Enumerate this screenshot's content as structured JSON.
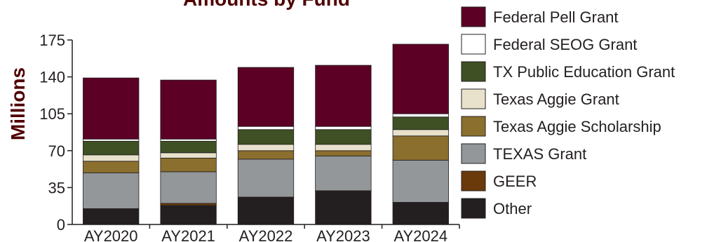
{
  "chart_data": {
    "type": "bar",
    "stacked": true,
    "title": "Amounts by Fund",
    "xlabel": "",
    "ylabel": "Millions",
    "ylim": [
      0,
      175
    ],
    "yticks": [
      "0",
      "35",
      "70",
      "105",
      "140",
      "175"
    ],
    "categories": [
      "AY2020",
      "AY2021",
      "AY2022",
      "AY2023",
      "AY2024"
    ],
    "legend_position": "right",
    "series": [
      {
        "name": "Other",
        "color": "#231f20",
        "values": [
          15,
          18,
          26,
          32,
          21
        ]
      },
      {
        "name": "GEER",
        "color": "#6b3a0a",
        "values": [
          0,
          2,
          0,
          0,
          0
        ]
      },
      {
        "name": "TEXAS Grant",
        "color": "#939799",
        "values": [
          34,
          30,
          36,
          33,
          40
        ]
      },
      {
        "name": "Texas Aggie Scholarship",
        "color": "#8b6f2e",
        "values": [
          11,
          13,
          8,
          5,
          23
        ]
      },
      {
        "name": "Texas Aggie Grant",
        "color": "#e8e2cd",
        "values": [
          6,
          5,
          6,
          6,
          6
        ]
      },
      {
        "name": "TX Public Education Grant",
        "color": "#3e5024",
        "values": [
          13,
          11,
          14,
          14,
          12
        ]
      },
      {
        "name": "Federal SEOG Grant",
        "color": "#ffffff",
        "values": [
          2,
          2,
          3,
          3,
          3
        ]
      },
      {
        "name": "Federal Pell Grant",
        "color": "#5c0025",
        "values": [
          58,
          56,
          56,
          58,
          66
        ]
      }
    ],
    "legend_order": [
      "Federal Pell Grant",
      "Federal SEOG Grant",
      "TX Public Education Grant",
      "Texas Aggie Grant",
      "Texas Aggie Scholarship",
      "TEXAS Grant",
      "GEER",
      "Other"
    ]
  }
}
